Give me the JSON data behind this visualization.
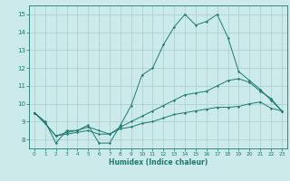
{
  "background_color": "#cceaea",
  "grid_color": "#aacccc",
  "line_color": "#1a7a6e",
  "xlabel": "Humidex (Indice chaleur)",
  "xlim": [
    -0.5,
    23.5
  ],
  "ylim": [
    7.5,
    15.5
  ],
  "yticks": [
    8,
    9,
    10,
    11,
    12,
    13,
    14,
    15
  ],
  "xticks": [
    0,
    1,
    2,
    3,
    4,
    5,
    6,
    7,
    8,
    9,
    10,
    11,
    12,
    13,
    14,
    15,
    16,
    17,
    18,
    19,
    20,
    21,
    22,
    23
  ],
  "series1_x": [
    0,
    1,
    2,
    3,
    4,
    5,
    6,
    7,
    8,
    9,
    10,
    11,
    12,
    13,
    14,
    15,
    16,
    17,
    18,
    19,
    20,
    21,
    22,
    23
  ],
  "series1_y": [
    9.5,
    9.0,
    7.8,
    8.5,
    8.5,
    8.8,
    7.8,
    7.8,
    8.8,
    9.9,
    11.6,
    12.0,
    13.3,
    14.3,
    15.0,
    14.4,
    14.6,
    15.0,
    13.7,
    11.8,
    11.3,
    10.8,
    10.2,
    9.6
  ],
  "series2_x": [
    0,
    1,
    2,
    3,
    4,
    5,
    6,
    7,
    8,
    9,
    10,
    11,
    12,
    13,
    14,
    15,
    16,
    17,
    18,
    19,
    20,
    21,
    22,
    23
  ],
  "series2_y": [
    9.5,
    8.9,
    8.2,
    8.3,
    8.4,
    8.5,
    8.3,
    8.3,
    8.6,
    8.7,
    8.9,
    9.0,
    9.2,
    9.4,
    9.5,
    9.6,
    9.7,
    9.8,
    9.8,
    9.85,
    10.0,
    10.1,
    9.75,
    9.6
  ],
  "series3_x": [
    0,
    1,
    2,
    3,
    4,
    5,
    6,
    7,
    8,
    9,
    10,
    11,
    12,
    13,
    14,
    15,
    16,
    17,
    18,
    19,
    20,
    21,
    22,
    23
  ],
  "series3_y": [
    9.5,
    8.9,
    8.2,
    8.4,
    8.5,
    8.7,
    8.5,
    8.3,
    8.7,
    9.0,
    9.3,
    9.6,
    9.9,
    10.2,
    10.5,
    10.6,
    10.7,
    11.0,
    11.3,
    11.4,
    11.2,
    10.7,
    10.3,
    9.6
  ]
}
